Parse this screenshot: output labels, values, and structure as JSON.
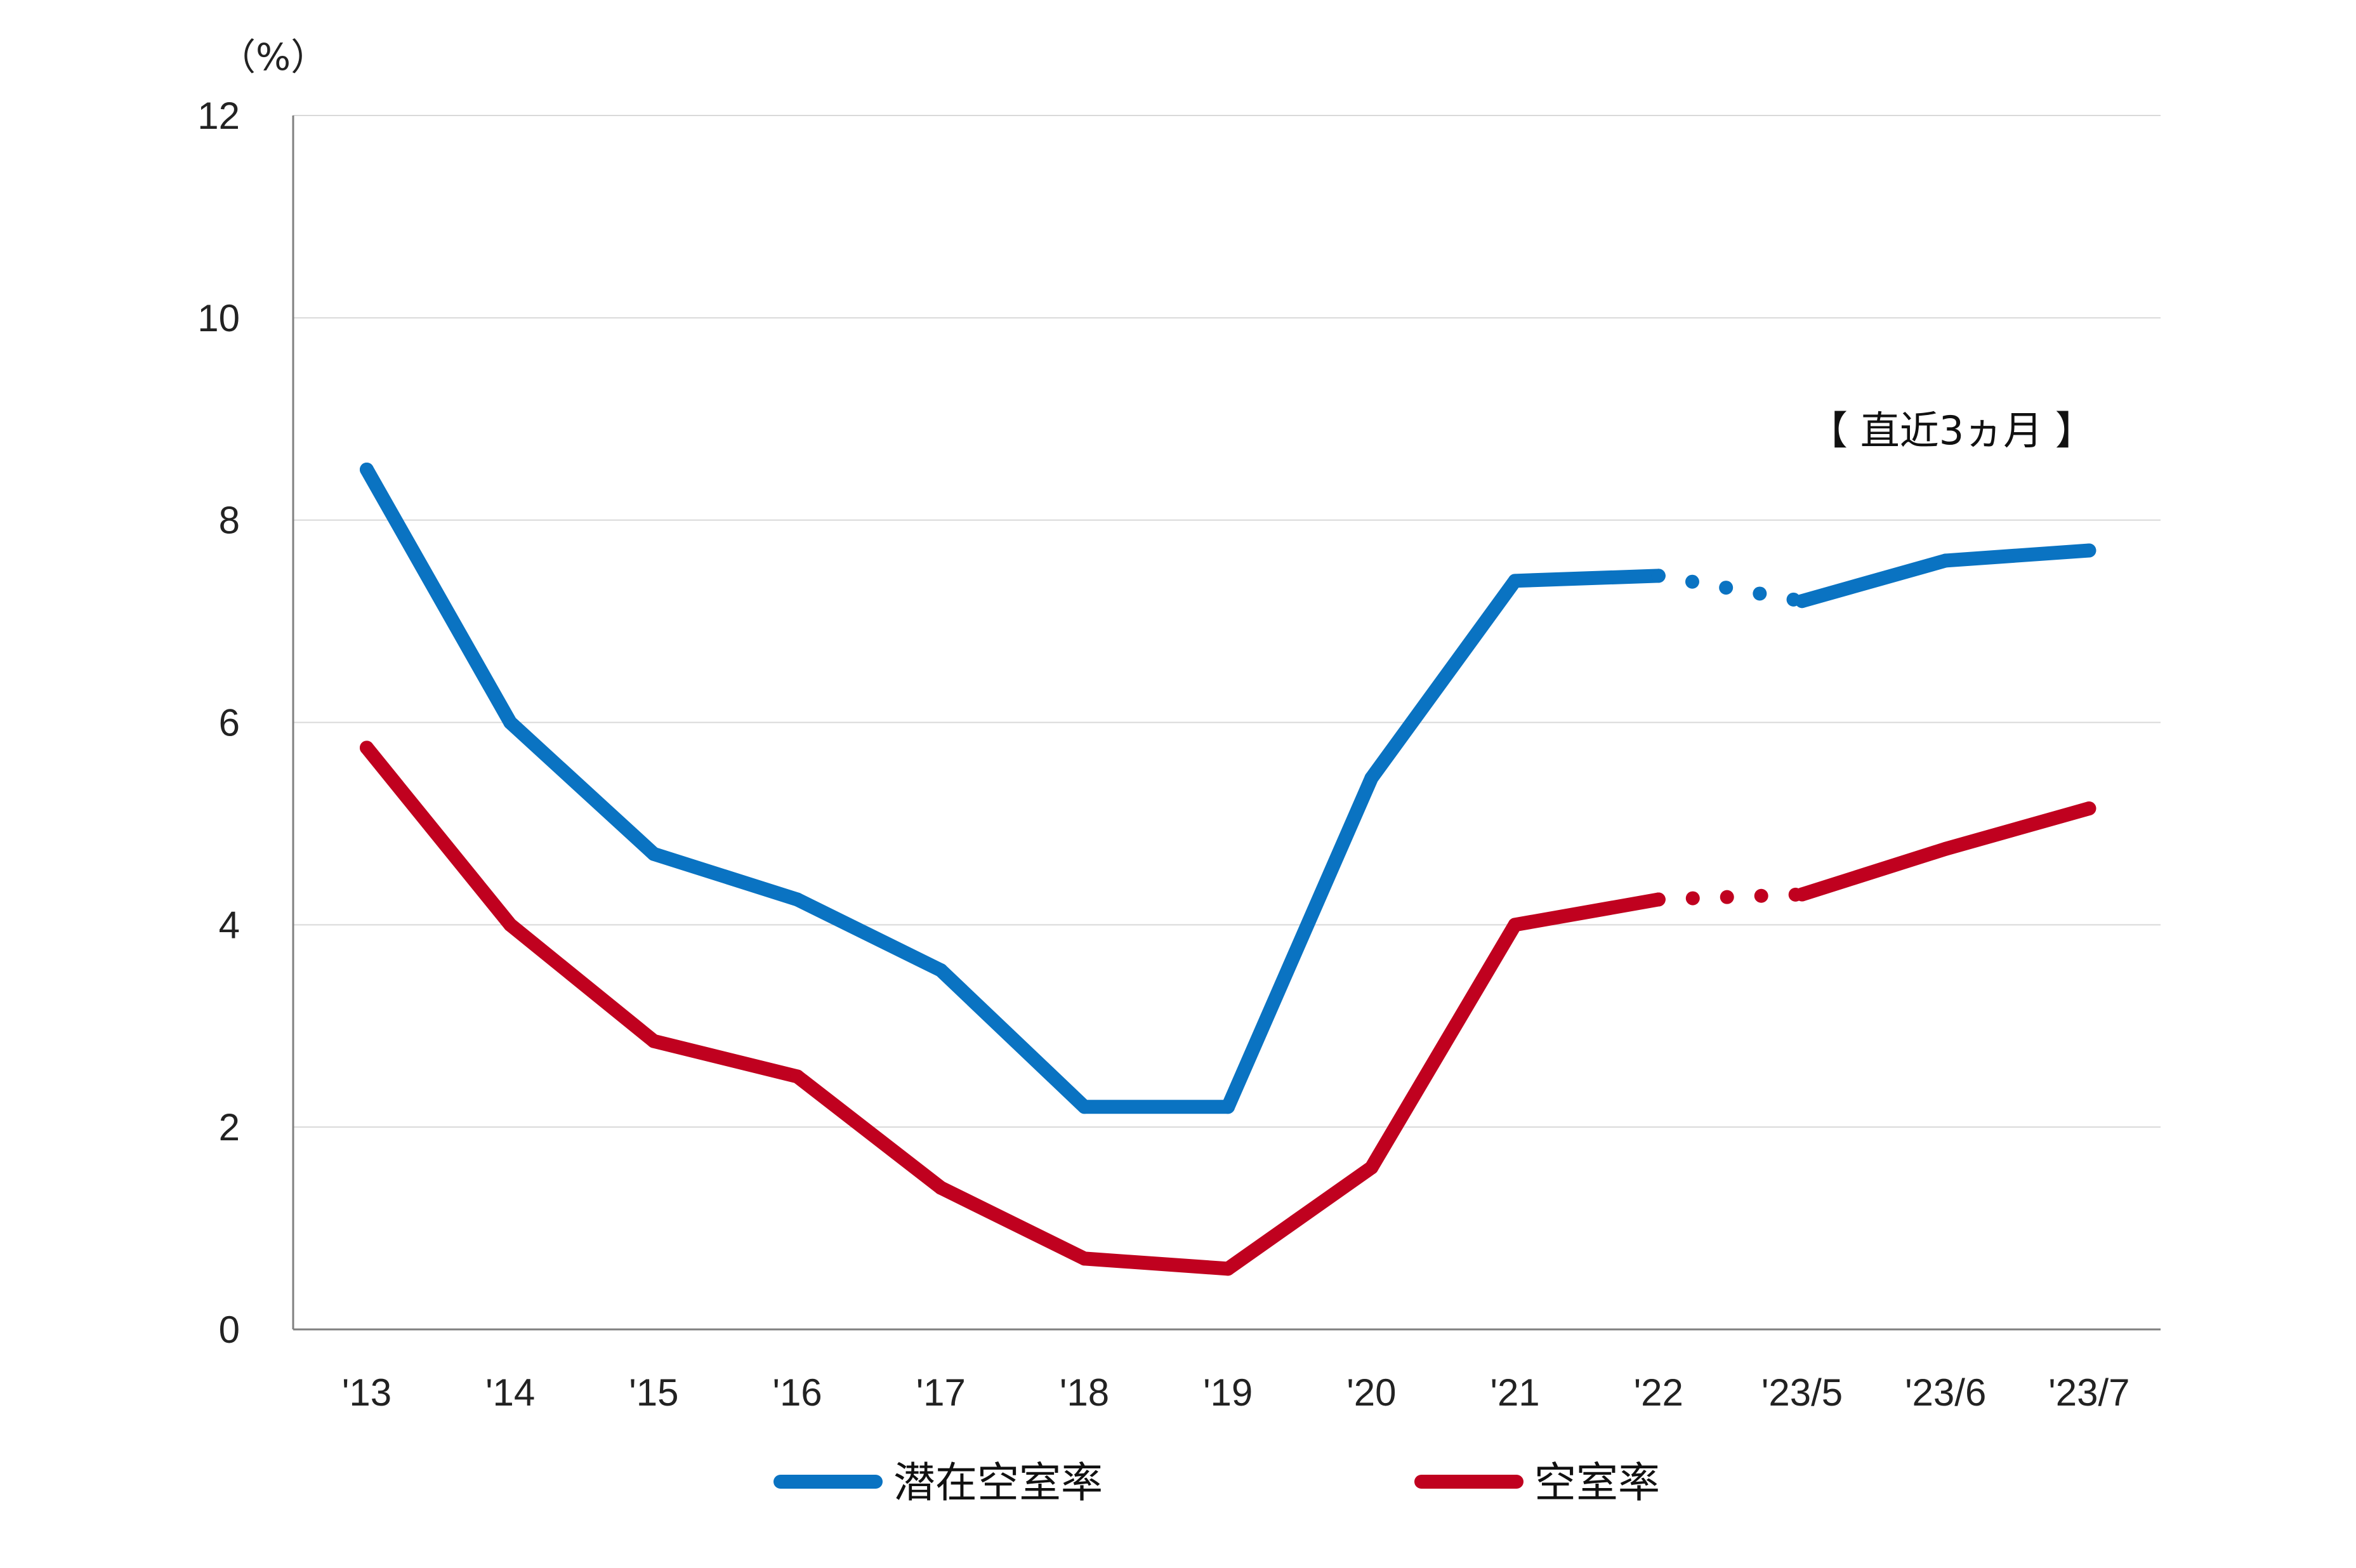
{
  "chart_data": {
    "type": "line",
    "title": "",
    "xlabel": "",
    "ylabel": "",
    "unit_label": "（%）",
    "annotation": "【 直近3ヵ月 】",
    "categories": [
      "'13",
      "'14",
      "'15",
      "'16",
      "'17",
      "'18",
      "'19",
      "'20",
      "'21",
      "'22",
      "'23/5",
      "'23/6",
      "'23/7"
    ],
    "ylim": [
      0,
      12
    ],
    "yticks": [
      0,
      2,
      4,
      6,
      8,
      10,
      12
    ],
    "grid": true,
    "legend_position": "bottom",
    "dotted_segment_between": [
      "'22",
      "'23/5"
    ],
    "series": [
      {
        "name": "潜在空室率",
        "color": "#0a73c2",
        "values": [
          8.5,
          6.0,
          4.7,
          4.25,
          3.55,
          2.2,
          2.2,
          5.45,
          7.4,
          7.45,
          7.2,
          7.6,
          7.7
        ]
      },
      {
        "name": "空室率",
        "color": "#c0011f",
        "values": [
          5.75,
          4.0,
          2.85,
          2.5,
          1.4,
          0.7,
          0.6,
          1.6,
          4.0,
          4.25,
          4.3,
          4.75,
          5.15
        ]
      }
    ]
  }
}
